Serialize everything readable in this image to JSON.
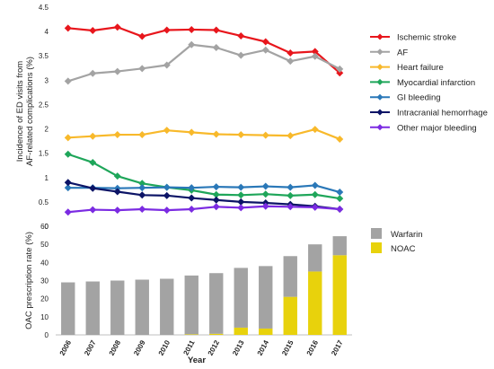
{
  "chart_data": [
    {
      "type": "line",
      "x": [
        "2006",
        "2007",
        "2008",
        "2009",
        "2010",
        "2011",
        "2012",
        "2013",
        "2014",
        "2015",
        "2016",
        "2017"
      ],
      "ylabel": "Incidence of ED visits from AF-related complications (%)",
      "yticks": [
        "0",
        "0.5",
        "1",
        "1.5",
        "2",
        "2.5",
        "3",
        "3.5",
        "4",
        "4.5"
      ],
      "ylim": [
        0,
        4.5
      ],
      "legend_position": "right",
      "series": [
        {
          "name": "Ischemic stroke",
          "color": "#e8161c",
          "marker": "diamond",
          "values": [
            4.07,
            4.02,
            4.09,
            3.9,
            4.03,
            4.04,
            4.03,
            3.91,
            3.79,
            3.56,
            3.59,
            3.15
          ]
        },
        {
          "name": "AF",
          "color": "#a3a3a3",
          "marker": "diamond",
          "values": [
            2.98,
            3.14,
            3.18,
            3.24,
            3.31,
            3.73,
            3.67,
            3.51,
            3.62,
            3.39,
            3.49,
            3.23
          ]
        },
        {
          "name": "Heart failure",
          "color": "#f8b92b",
          "marker": "diamond",
          "values": [
            1.82,
            1.85,
            1.88,
            1.88,
            1.97,
            1.93,
            1.89,
            1.88,
            1.87,
            1.86,
            1.99,
            1.79
          ]
        },
        {
          "name": "Myocardial infarction",
          "color": "#1fa65a",
          "marker": "diamond",
          "values": [
            1.48,
            1.31,
            1.03,
            0.88,
            0.8,
            0.74,
            0.65,
            0.64,
            0.66,
            0.63,
            0.65,
            0.57
          ]
        },
        {
          "name": "GI bleeding",
          "color": "#2a78b8",
          "marker": "diamond",
          "values": [
            0.79,
            0.79,
            0.78,
            0.79,
            0.8,
            0.79,
            0.81,
            0.8,
            0.82,
            0.8,
            0.84,
            0.7
          ]
        },
        {
          "name": "Intracranial hemorrhage",
          "color": "#0c1466",
          "marker": "diamond",
          "values": [
            0.9,
            0.78,
            0.71,
            0.64,
            0.63,
            0.58,
            0.54,
            0.5,
            0.48,
            0.45,
            0.41,
            0.35
          ]
        },
        {
          "name": "Other major bleeding",
          "color": "#7b2be2",
          "marker": "diamond",
          "values": [
            0.29,
            0.34,
            0.33,
            0.35,
            0.33,
            0.35,
            0.4,
            0.38,
            0.41,
            0.4,
            0.39,
            0.35
          ]
        }
      ]
    },
    {
      "type": "bar",
      "stacked": true,
      "categories": [
        "2006",
        "2007",
        "2008",
        "2009",
        "2010",
        "2011",
        "2012",
        "2013",
        "2014",
        "2015",
        "2016",
        "2017"
      ],
      "xlabel": "Year",
      "ylabel": "OAC prescription rate (%)",
      "yticks": [
        "0",
        "10",
        "20",
        "30",
        "40",
        "50",
        "60"
      ],
      "ylim": [
        0,
        60
      ],
      "legend_position": "right",
      "series": [
        {
          "name": "NOAC",
          "color": "#e8d20c",
          "values": [
            0,
            0,
            0,
            0,
            0,
            0.3,
            0.6,
            4.0,
            3.5,
            21.0,
            35.0,
            44.0
          ]
        },
        {
          "name": "Warfarin",
          "color": "#a3a3a3",
          "values": [
            29.0,
            29.5,
            30.0,
            30.5,
            31.0,
            32.5,
            33.5,
            33.0,
            34.5,
            22.5,
            15.0,
            10.5
          ]
        }
      ]
    }
  ]
}
